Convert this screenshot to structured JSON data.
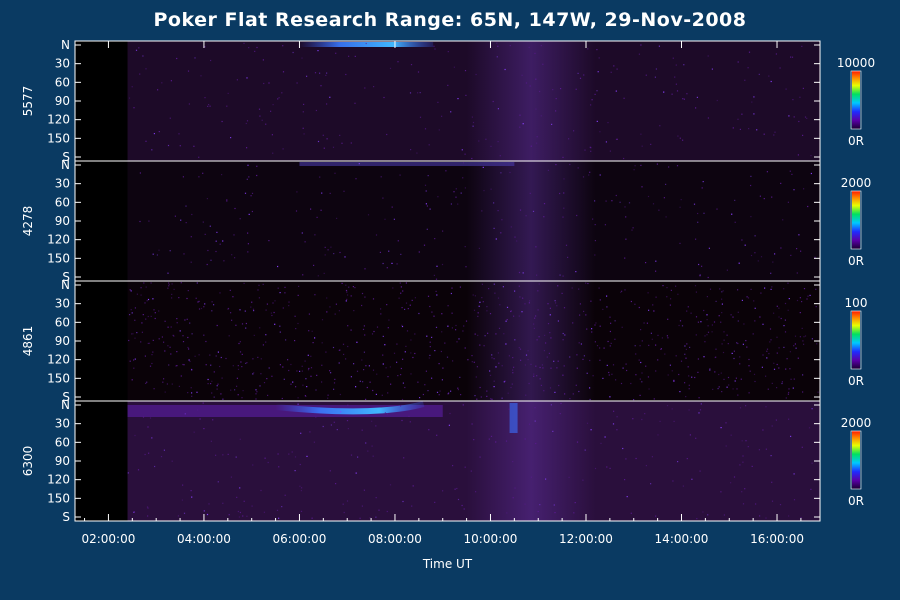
{
  "chart_data": {
    "type": "heatmap",
    "title": "Poker Flat Research Range: 65N, 147W, 29-Nov-2008",
    "xlabel": "Time UT",
    "xlim": [
      1.3,
      16.9
    ],
    "x_ticks": [
      "02:00:00",
      "04:00:00",
      "06:00:00",
      "08:00:00",
      "10:00:00",
      "12:00:00",
      "14:00:00",
      "16:00:00"
    ],
    "x_tick_values": [
      2,
      4,
      6,
      8,
      10,
      12,
      14,
      16
    ],
    "y_ticks": [
      "N",
      "30",
      "60",
      "90",
      "120",
      "150",
      "S"
    ],
    "y_tick_values": [
      0,
      30,
      60,
      90,
      120,
      150,
      180
    ],
    "ylim": [
      0,
      180
    ],
    "panels": [
      {
        "label": "5577",
        "colorbar_max": "10000",
        "colorbar_min": "0R"
      },
      {
        "label": "4278",
        "colorbar_max": "2000",
        "colorbar_min": "0R"
      },
      {
        "label": "4861",
        "colorbar_max": "100",
        "colorbar_min": "0R"
      },
      {
        "label": "6300",
        "colorbar_max": "2000",
        "colorbar_min": "0R"
      }
    ]
  }
}
